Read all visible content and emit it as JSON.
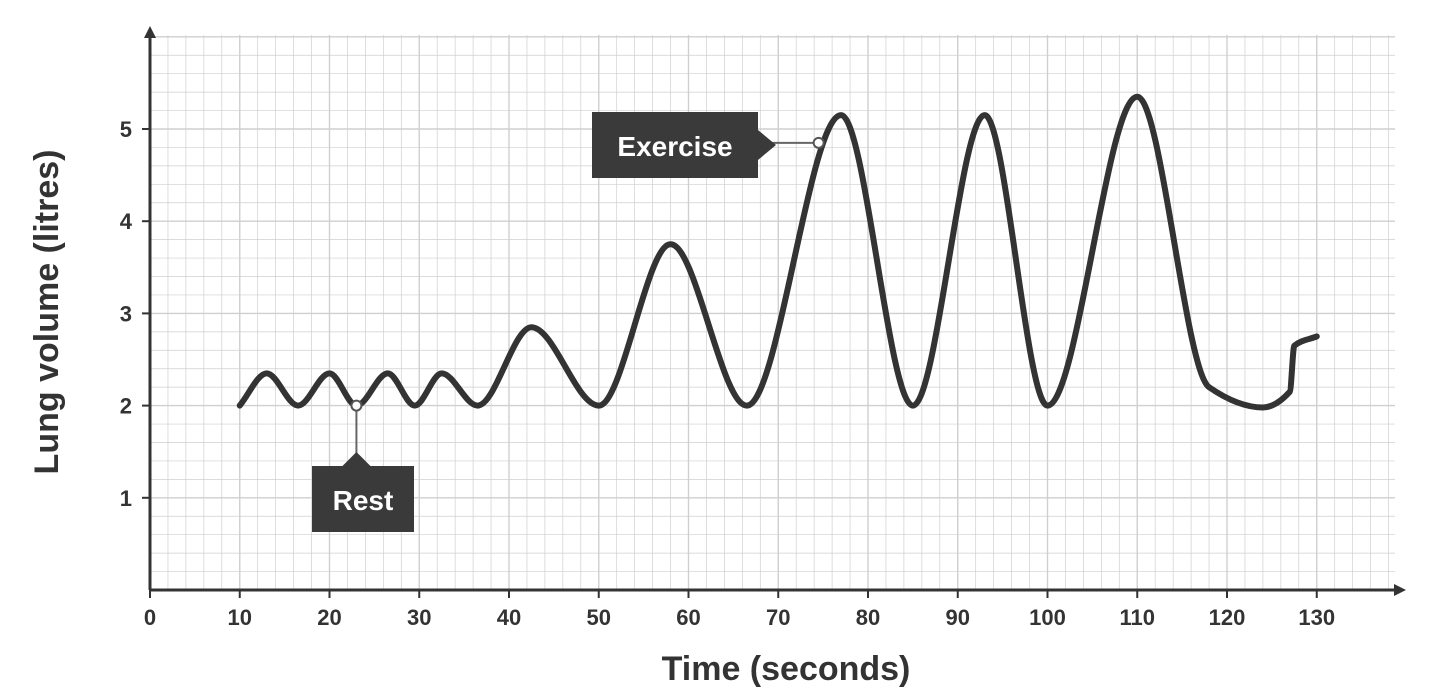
{
  "chart_data": {
    "type": "line",
    "title": "",
    "xlabel": "Time (seconds)",
    "ylabel": "Lung volume (litres)",
    "xlim": [
      0,
      135
    ],
    "ylim": [
      0,
      6
    ],
    "x_ticks": [
      0,
      10,
      20,
      30,
      40,
      50,
      60,
      70,
      80,
      90,
      100,
      110,
      120,
      130
    ],
    "y_ticks": [
      1,
      2,
      3,
      4,
      5
    ],
    "grid": true,
    "colors": {
      "line": "#333333",
      "grid": "#cfcfcf",
      "axis": "#333333",
      "callout": "#3a3a3a"
    },
    "series": [
      {
        "x": [
          10,
          13,
          16.5,
          20,
          23,
          26.5,
          29.5,
          32.5,
          36.5,
          42.5,
          50,
          58,
          66.5,
          77,
          85,
          93,
          100,
          110,
          118,
          124,
          127,
          127.5,
          130
        ],
        "y": [
          2.0,
          2.35,
          2.0,
          2.35,
          2.0,
          2.35,
          2.0,
          2.35,
          2.0,
          2.85,
          2.0,
          3.75,
          2.0,
          5.15,
          2.0,
          5.15,
          2.0,
          5.35,
          2.2,
          1.98,
          2.15,
          2.65,
          2.75
        ]
      }
    ],
    "annotations": [
      {
        "text": "Exercise",
        "x": 74.5,
        "y": 4.85
      },
      {
        "text": "Rest",
        "x": 23,
        "y": 2.0
      }
    ]
  }
}
